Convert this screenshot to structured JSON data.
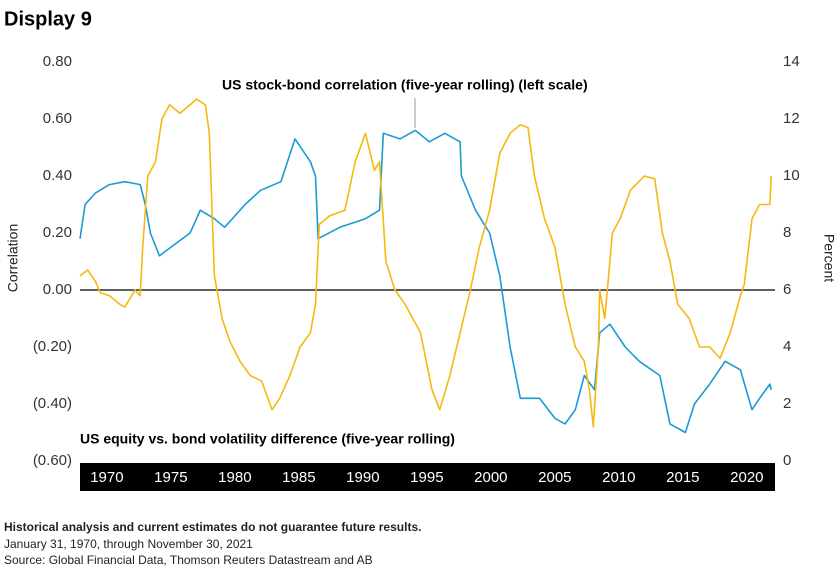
{
  "title": "Display 9",
  "chart_data": {
    "type": "line",
    "y_label": "Correlation",
    "y2_label": "Percent",
    "xlim": [
      1967.9,
      2022.2
    ],
    "xticks": [
      1970,
      1975,
      1980,
      1985,
      1990,
      1995,
      2000,
      2005,
      2010,
      2015,
      2020
    ],
    "ylim": [
      -0.6,
      0.8
    ],
    "yticks": [
      {
        "value": -0.6,
        "label": "(0.60)"
      },
      {
        "value": -0.4,
        "label": "(0.40)"
      },
      {
        "value": -0.2,
        "label": "(0.20)"
      },
      {
        "value": 0,
        "label": "0.00"
      },
      {
        "value": 0.2,
        "label": "0.20"
      },
      {
        "value": 0.4,
        "label": "0.40"
      },
      {
        "value": 0.6,
        "label": "0.60"
      },
      {
        "value": 0.8,
        "label": "0.80"
      }
    ],
    "y2lim": [
      0,
      14
    ],
    "y2ticks": [
      0,
      2,
      4,
      6,
      8,
      10,
      12,
      14
    ],
    "zero_line": true,
    "series": [
      {
        "name": "US stock-bond correlation (five-year rolling) (left scale)",
        "color": "#1a9ad6",
        "axis": "y",
        "x": [
          1967.9,
          1968.3,
          1969.1,
          1970.2,
          1971.4,
          1972.6,
          1973.0,
          1973.4,
          1974.1,
          1975.3,
          1976.5,
          1977.3,
          1978.4,
          1979.2,
          1980.8,
          1982.0,
          1983.6,
          1984.7,
          1985.9,
          1986.3,
          1986.5,
          1988.2,
          1990.2,
          1991.3,
          1991.6,
          1992.9,
          1994.1,
          1995.2,
          1996.4,
          1997.6,
          1997.7,
          1998.8,
          1999.9,
          2000.7,
          2001.5,
          2002.3,
          2003.8,
          2005.0,
          2005.8,
          2006.6,
          2007.3,
          2008.1,
          2008.5,
          2009.3,
          2010.5,
          2011.6,
          2013.2,
          2014.0,
          2015.2,
          2015.9,
          2017.1,
          2018.3,
          2019.5,
          2020.4,
          2021.0,
          2021.8,
          2021.9
        ],
        "values": [
          0.18,
          0.3,
          0.34,
          0.37,
          0.38,
          0.37,
          0.3,
          0.2,
          0.12,
          0.16,
          0.2,
          0.28,
          0.25,
          0.22,
          0.3,
          0.35,
          0.38,
          0.53,
          0.45,
          0.4,
          0.18,
          0.22,
          0.25,
          0.28,
          0.55,
          0.53,
          0.56,
          0.52,
          0.55,
          0.52,
          0.4,
          0.28,
          0.2,
          0.05,
          -0.2,
          -0.38,
          -0.38,
          -0.45,
          -0.47,
          -0.42,
          -0.3,
          -0.35,
          -0.15,
          -0.12,
          -0.2,
          -0.25,
          -0.3,
          -0.47,
          -0.5,
          -0.4,
          -0.33,
          -0.25,
          -0.28,
          -0.42,
          -0.38,
          -0.33,
          -0.35
        ]
      },
      {
        "name": "US equity vs. bond volatility difference (five-year rolling)",
        "color": "#f5b90f",
        "axis": "y2",
        "x": [
          1967.9,
          1968.5,
          1969.1,
          1969.5,
          1970.2,
          1971.0,
          1971.4,
          1972.2,
          1972.6,
          1972.8,
          1973.2,
          1973.8,
          1974.3,
          1974.9,
          1975.7,
          1976.5,
          1977.0,
          1977.7,
          1978.0,
          1978.4,
          1979.0,
          1979.6,
          1980.4,
          1981.2,
          1982.1,
          1982.9,
          1983.5,
          1984.3,
          1985.1,
          1985.9,
          1986.3,
          1986.6,
          1987.4,
          1988.6,
          1989.4,
          1990.2,
          1990.9,
          1991.3,
          1991.8,
          1992.5,
          1993.3,
          1994.5,
          1995.4,
          1996.0,
          1996.8,
          1997.6,
          1998.4,
          1999.1,
          1999.9,
          2000.7,
          2001.5,
          2002.3,
          2002.9,
          2003.4,
          2004.2,
          2005.0,
          2005.8,
          2006.6,
          2007.3,
          2007.7,
          2008.0,
          2008.4,
          2008.5,
          2008.9,
          2009.5,
          2010.1,
          2010.9,
          2012.0,
          2012.8,
          2013.4,
          2014.0,
          2014.6,
          2015.5,
          2016.3,
          2017.1,
          2017.9,
          2018.7,
          2019.5,
          2019.8,
          2020.4,
          2021.0,
          2021.8,
          2021.9
        ],
        "values": [
          6.5,
          6.7,
          6.3,
          5.9,
          5.8,
          5.5,
          5.4,
          6.0,
          5.8,
          7.5,
          10.0,
          10.5,
          12.0,
          12.5,
          12.2,
          12.5,
          12.7,
          12.5,
          11.5,
          6.5,
          5.0,
          4.2,
          3.5,
          3.0,
          2.8,
          1.8,
          2.2,
          3.0,
          4.0,
          4.5,
          5.5,
          8.3,
          8.6,
          8.8,
          10.5,
          11.5,
          10.2,
          10.5,
          7.0,
          6.0,
          5.5,
          4.5,
          2.5,
          1.8,
          3.0,
          4.5,
          6.0,
          7.5,
          8.8,
          10.8,
          11.5,
          11.8,
          11.7,
          10.0,
          8.5,
          7.5,
          5.5,
          4.0,
          3.5,
          2.5,
          1.2,
          4.0,
          6.0,
          5.0,
          8.0,
          8.5,
          9.5,
          10.0,
          9.9,
          8.0,
          7.0,
          5.5,
          5.0,
          4.0,
          4.0,
          3.6,
          4.5,
          5.8,
          6.2,
          8.5,
          9.0,
          9.0,
          10.0
        ]
      }
    ]
  },
  "footnotes": [
    "Historical analysis and current estimates do not guarantee future results.",
    "January 31, 1970, through November 30, 2021",
    "Source: Global Financial Data, Thomson Reuters Datastream and AB"
  ]
}
